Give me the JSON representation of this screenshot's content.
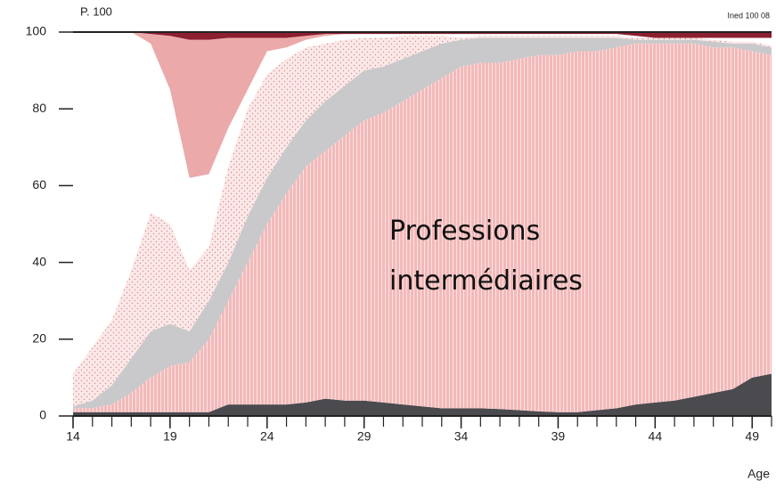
{
  "chart_data": {
    "type": "stacked-area",
    "ylabel": "P. 100",
    "source": "Ined 100 08",
    "xlabel": "Age",
    "x": [
      14,
      15,
      16,
      17,
      18,
      19,
      20,
      21,
      22,
      23,
      24,
      25,
      26,
      27,
      28,
      29,
      30,
      31,
      32,
      33,
      34,
      35,
      36,
      37,
      38,
      39,
      40,
      41,
      42,
      43,
      44,
      45,
      46,
      47,
      48,
      49,
      50
    ],
    "xlim": [
      14,
      50
    ],
    "xticks": [
      14,
      19,
      24,
      29,
      34,
      39,
      44,
      49
    ],
    "ylim": [
      0,
      100
    ],
    "yticks": [
      0,
      20,
      40,
      60,
      80,
      100
    ],
    "series": [
      {
        "color": "#4a4a4f",
        "values": [
          1,
          1,
          1,
          1,
          1,
          1,
          1,
          1,
          3,
          3,
          3,
          3,
          3.5,
          4.5,
          4,
          4,
          3.5,
          3,
          2.5,
          2,
          2,
          2,
          1.8,
          1.5,
          1.2,
          1,
          1,
          1.5,
          2,
          3,
          3.5,
          4,
          5,
          6,
          7,
          10,
          11
        ]
      },
      {
        "name": "Professions intermédiaires",
        "color": "#f3b9b9",
        "pattern": "vertical-lines",
        "values": [
          1,
          1,
          2,
          5,
          9,
          12,
          13,
          19,
          27,
          37,
          47,
          55,
          61.5,
          64.5,
          69,
          73,
          75.5,
          79,
          82.5,
          86,
          89,
          90,
          90.2,
          91.5,
          92.8,
          93,
          94,
          93.5,
          94,
          94,
          93.5,
          93,
          92,
          90,
          89,
          85,
          83
        ]
      },
      {
        "color": "#c9c9cb",
        "values": [
          0.5,
          2,
          5,
          9,
          12,
          11,
          8,
          10,
          10,
          12,
          12,
          12,
          12,
          13,
          13,
          13,
          12,
          11,
          10,
          9,
          7,
          6.5,
          6.5,
          5.5,
          4.5,
          4.5,
          3.5,
          3.5,
          2.5,
          1,
          1,
          1,
          1,
          1.5,
          1,
          2,
          2
        ]
      },
      {
        "color": "#fbe8e8",
        "pattern": "dots",
        "values": [
          8.5,
          14,
          17,
          23,
          31,
          26,
          16,
          14,
          25,
          28,
          27,
          23,
          19,
          15,
          12,
          8.5,
          7.5,
          6,
          4,
          2,
          0.5,
          0.5,
          0.5,
          0.5,
          0.5,
          0.5,
          0.5,
          0.5,
          0.5,
          0.5,
          0.5,
          0.5,
          0.5,
          0.5,
          0.5,
          0.5,
          0.5
        ]
      },
      {
        "color": "#ffffff",
        "values": [
          89,
          82,
          75,
          62,
          44,
          35,
          24,
          19,
          10,
          5,
          6,
          3,
          2,
          2,
          1.5,
          1,
          1,
          0.5,
          0.5,
          0.5,
          1,
          0.5,
          0.5,
          0.5,
          0.5,
          0.5,
          0.5,
          0.5,
          0.5,
          0.5,
          0,
          0,
          0,
          0.5,
          1,
          1,
          2
        ]
      },
      {
        "color": "#eba9aa",
        "values": [
          0,
          0,
          0,
          0,
          2.5,
          14,
          36,
          35,
          23.5,
          13.5,
          3.5,
          2.5,
          1,
          0.5,
          0,
          0,
          0,
          0,
          0,
          0,
          0,
          0,
          0,
          0,
          0,
          0,
          0,
          0,
          0,
          0,
          0,
          0,
          0,
          0,
          0,
          0,
          0
        ]
      },
      {
        "color": "#8c1f30",
        "values": [
          0,
          0,
          0,
          0,
          0.5,
          1,
          2,
          2,
          1.5,
          1.5,
          1.5,
          1.5,
          1,
          0.5,
          0.5,
          0.5,
          0.5,
          0.5,
          0.5,
          0.5,
          0.5,
          0.5,
          0.5,
          0.5,
          0.5,
          0.5,
          0.5,
          0.5,
          0.5,
          1,
          1.5,
          1.5,
          1.5,
          1.5,
          1.5,
          1.5,
          1.5
        ]
      }
    ]
  }
}
